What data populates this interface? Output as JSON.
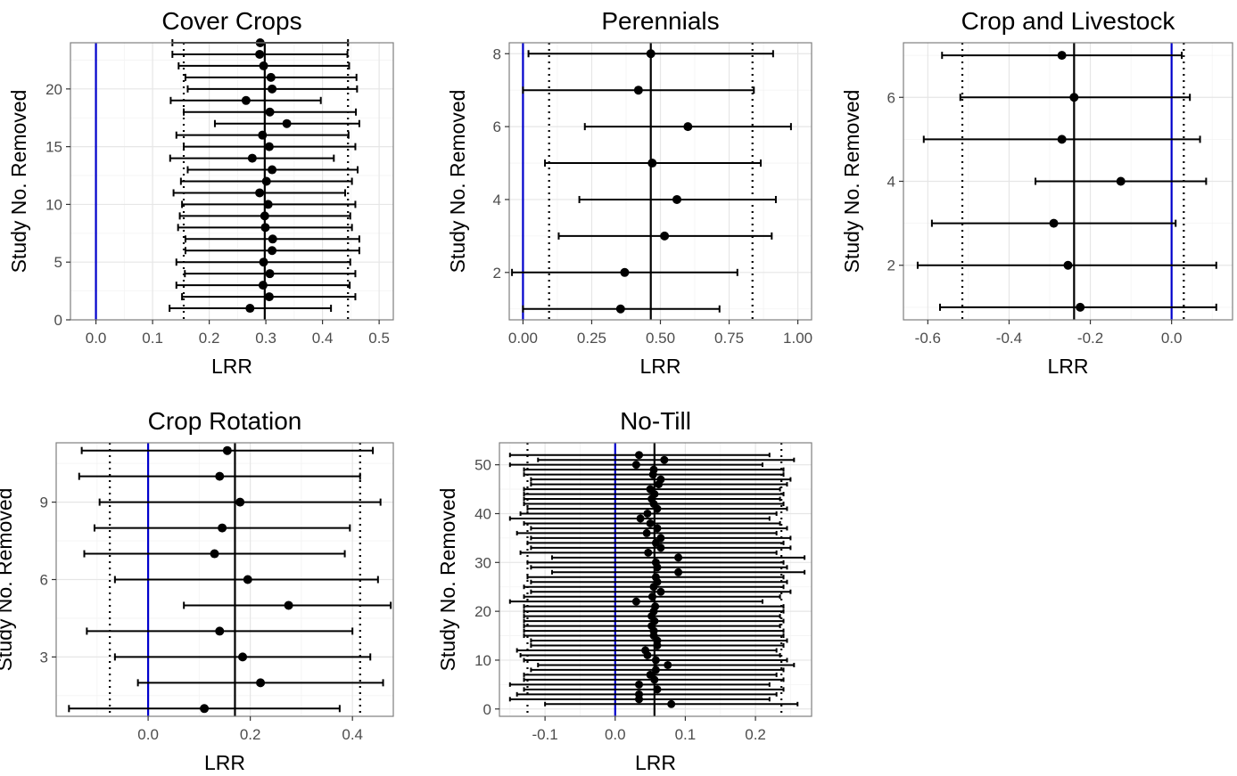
{
  "chart_data": [
    {
      "type": "forest",
      "title": "Cover Crops",
      "xlabel": "LRR",
      "ylabel": "Study No. Removed",
      "xlim": [
        -0.045,
        0.525
      ],
      "ylim": [
        0,
        24
      ],
      "xticks": [
        0,
        0.1,
        0.2,
        0.3,
        0.4,
        0.5
      ],
      "xtick_labels": [
        "0.0",
        "0.1",
        "0.2",
        "0.3",
        "0.4",
        "0.5"
      ],
      "yticks": [
        0,
        5,
        10,
        15,
        20
      ],
      "ytick_labels": [
        "0",
        "5",
        "10",
        "15",
        "20"
      ],
      "zero_line": 0,
      "overall_estimate": 0.298,
      "ci_lines": [
        0.155,
        0.445
      ],
      "points": [
        {
          "y": 1,
          "est": 0.272,
          "lo": 0.13,
          "hi": 0.415
        },
        {
          "y": 2,
          "est": 0.306,
          "lo": 0.152,
          "hi": 0.458
        },
        {
          "y": 3,
          "est": 0.295,
          "lo": 0.142,
          "hi": 0.448
        },
        {
          "y": 4,
          "est": 0.307,
          "lo": 0.157,
          "hi": 0.458
        },
        {
          "y": 5,
          "est": 0.296,
          "lo": 0.142,
          "hi": 0.449
        },
        {
          "y": 6,
          "est": 0.311,
          "lo": 0.158,
          "hi": 0.465
        },
        {
          "y": 7,
          "est": 0.312,
          "lo": 0.158,
          "hi": 0.465
        },
        {
          "y": 8,
          "est": 0.299,
          "lo": 0.145,
          "hi": 0.452
        },
        {
          "y": 9,
          "est": 0.298,
          "lo": 0.148,
          "hi": 0.449
        },
        {
          "y": 10,
          "est": 0.304,
          "lo": 0.152,
          "hi": 0.458
        },
        {
          "y": 11,
          "est": 0.289,
          "lo": 0.137,
          "hi": 0.44
        },
        {
          "y": 12,
          "est": 0.301,
          "lo": 0.15,
          "hi": 0.452
        },
        {
          "y": 13,
          "est": 0.311,
          "lo": 0.162,
          "hi": 0.462
        },
        {
          "y": 14,
          "est": 0.276,
          "lo": 0.131,
          "hi": 0.42
        },
        {
          "y": 15,
          "est": 0.306,
          "lo": 0.155,
          "hi": 0.458
        },
        {
          "y": 16,
          "est": 0.294,
          "lo": 0.142,
          "hi": 0.446
        },
        {
          "y": 17,
          "est": 0.337,
          "lo": 0.21,
          "hi": 0.465
        },
        {
          "y": 18,
          "est": 0.307,
          "lo": 0.155,
          "hi": 0.459
        },
        {
          "y": 19,
          "est": 0.265,
          "lo": 0.132,
          "hi": 0.397
        },
        {
          "y": 20,
          "est": 0.311,
          "lo": 0.162,
          "hi": 0.461
        },
        {
          "y": 21,
          "est": 0.309,
          "lo": 0.158,
          "hi": 0.46
        },
        {
          "y": 22,
          "est": 0.296,
          "lo": 0.146,
          "hi": 0.447
        },
        {
          "y": 23,
          "est": 0.289,
          "lo": 0.135,
          "hi": 0.444
        },
        {
          "y": 24,
          "est": 0.29,
          "lo": 0.135,
          "hi": 0.445
        }
      ]
    },
    {
      "type": "forest",
      "title": "Perennials",
      "xlabel": "LRR",
      "ylabel": "Study No. Removed",
      "xlim": [
        -0.05,
        1.05
      ],
      "ylim": [
        0.7,
        8.3
      ],
      "xticks": [
        0,
        0.25,
        0.5,
        0.75,
        1.0
      ],
      "xtick_labels": [
        "0.00",
        "0.25",
        "0.50",
        "0.75",
        "1.00"
      ],
      "yticks": [
        2,
        4,
        6,
        8
      ],
      "ytick_labels": [
        "2",
        "4",
        "6",
        "8"
      ],
      "zero_line": 0,
      "overall_estimate": 0.465,
      "ci_lines": [
        0.095,
        0.835
      ],
      "points": [
        {
          "y": 1,
          "est": 0.355,
          "lo": 0.0,
          "hi": 0.715
        },
        {
          "y": 2,
          "est": 0.37,
          "lo": -0.04,
          "hi": 0.78
        },
        {
          "y": 3,
          "est": 0.515,
          "lo": 0.13,
          "hi": 0.905
        },
        {
          "y": 4,
          "est": 0.56,
          "lo": 0.205,
          "hi": 0.92
        },
        {
          "y": 5,
          "est": 0.47,
          "lo": 0.08,
          "hi": 0.865
        },
        {
          "y": 6,
          "est": 0.6,
          "lo": 0.225,
          "hi": 0.975
        },
        {
          "y": 7,
          "est": 0.42,
          "lo": 0.0,
          "hi": 0.84
        },
        {
          "y": 8,
          "est": 0.465,
          "lo": 0.02,
          "hi": 0.91
        }
      ]
    },
    {
      "type": "forest",
      "title": "Crop and Livestock",
      "xlabel": "LRR",
      "ylabel": "Study No. Removed",
      "xlim": [
        -0.66,
        0.15
      ],
      "ylim": [
        0.7,
        7.3
      ],
      "xticks": [
        -0.6,
        -0.4,
        -0.2,
        0.0
      ],
      "xtick_labels": [
        "-0.6",
        "-0.4",
        "-0.2",
        "0.0"
      ],
      "yticks": [
        2,
        4,
        6
      ],
      "ytick_labels": [
        "2",
        "4",
        "6"
      ],
      "zero_line": 0,
      "overall_estimate": -0.24,
      "ci_lines": [
        -0.515,
        0.03
      ],
      "points": [
        {
          "y": 1,
          "est": -0.225,
          "lo": -0.57,
          "hi": 0.11
        },
        {
          "y": 2,
          "est": -0.255,
          "lo": -0.625,
          "hi": 0.11
        },
        {
          "y": 3,
          "est": -0.29,
          "lo": -0.59,
          "hi": 0.01
        },
        {
          "y": 4,
          "est": -0.125,
          "lo": -0.335,
          "hi": 0.085
        },
        {
          "y": 5,
          "est": -0.27,
          "lo": -0.61,
          "hi": 0.07
        },
        {
          "y": 6,
          "est": -0.24,
          "lo": -0.52,
          "hi": 0.045
        },
        {
          "y": 7,
          "est": -0.27,
          "lo": -0.565,
          "hi": 0.025
        }
      ]
    },
    {
      "type": "forest",
      "title": "Crop Rotation",
      "xlabel": "LRR",
      "ylabel": "Study No. Removed",
      "xlim": [
        -0.18,
        0.48
      ],
      "ylim": [
        0.7,
        11.3
      ],
      "xticks": [
        0.0,
        0.2,
        0.4
      ],
      "xtick_labels": [
        "0.0",
        "0.2",
        "0.4"
      ],
      "yticks": [
        3,
        6,
        9
      ],
      "ytick_labels": [
        "3",
        "6",
        "9"
      ],
      "zero_line": 0,
      "overall_estimate": 0.17,
      "ci_lines": [
        -0.075,
        0.415
      ],
      "points": [
        {
          "y": 1,
          "est": 0.11,
          "lo": -0.155,
          "hi": 0.375
        },
        {
          "y": 2,
          "est": 0.22,
          "lo": -0.02,
          "hi": 0.46
        },
        {
          "y": 3,
          "est": 0.185,
          "lo": -0.065,
          "hi": 0.435
        },
        {
          "y": 4,
          "est": 0.14,
          "lo": -0.12,
          "hi": 0.4
        },
        {
          "y": 5,
          "est": 0.275,
          "lo": 0.07,
          "hi": 0.475
        },
        {
          "y": 6,
          "est": 0.195,
          "lo": -0.065,
          "hi": 0.45
        },
        {
          "y": 7,
          "est": 0.13,
          "lo": -0.125,
          "hi": 0.385
        },
        {
          "y": 8,
          "est": 0.145,
          "lo": -0.105,
          "hi": 0.395
        },
        {
          "y": 9,
          "est": 0.18,
          "lo": -0.095,
          "hi": 0.455
        },
        {
          "y": 10,
          "est": 0.14,
          "lo": -0.135,
          "hi": 0.415
        },
        {
          "y": 11,
          "est": 0.155,
          "lo": -0.13,
          "hi": 0.44
        }
      ]
    },
    {
      "type": "forest",
      "title": "No-Till",
      "xlabel": "LRR",
      "ylabel": "Study No. Removed",
      "xlim": [
        -0.165,
        0.28
      ],
      "ylim": [
        -1.5,
        54.5
      ],
      "xticks": [
        -0.1,
        0.0,
        0.1,
        0.2
      ],
      "xtick_labels": [
        "-0.1",
        "0.0",
        "0.1",
        "0.2"
      ],
      "yticks": [
        0,
        10,
        20,
        30,
        40,
        50
      ],
      "ytick_labels": [
        "0",
        "10",
        "20",
        "30",
        "40",
        "50"
      ],
      "zero_line": 0,
      "overall_estimate": 0.056,
      "ci_lines": [
        -0.125,
        0.237
      ],
      "points": [
        {
          "y": 1,
          "est": 0.08,
          "lo": -0.1,
          "hi": 0.26
        },
        {
          "y": 2,
          "est": 0.034,
          "lo": -0.15,
          "hi": 0.22
        },
        {
          "y": 3,
          "est": 0.034,
          "lo": -0.14,
          "hi": 0.23
        },
        {
          "y": 4,
          "est": 0.06,
          "lo": -0.13,
          "hi": 0.24
        },
        {
          "y": 5,
          "est": 0.034,
          "lo": -0.15,
          "hi": 0.22
        },
        {
          "y": 6,
          "est": 0.056,
          "lo": -0.13,
          "hi": 0.24
        },
        {
          "y": 7,
          "est": 0.05,
          "lo": -0.13,
          "hi": 0.23
        },
        {
          "y": 8,
          "est": 0.058,
          "lo": -0.12,
          "hi": 0.24
        },
        {
          "y": 9,
          "est": 0.075,
          "lo": -0.11,
          "hi": 0.255
        },
        {
          "y": 10,
          "est": 0.058,
          "lo": -0.13,
          "hi": 0.245
        },
        {
          "y": 11,
          "est": 0.046,
          "lo": -0.135,
          "hi": 0.235
        },
        {
          "y": 12,
          "est": 0.043,
          "lo": -0.14,
          "hi": 0.23
        },
        {
          "y": 13,
          "est": 0.06,
          "lo": -0.12,
          "hi": 0.24
        },
        {
          "y": 14,
          "est": 0.06,
          "lo": -0.12,
          "hi": 0.245
        },
        {
          "y": 15,
          "est": 0.055,
          "lo": -0.13,
          "hi": 0.24
        },
        {
          "y": 16,
          "est": 0.055,
          "lo": -0.13,
          "hi": 0.24
        },
        {
          "y": 17,
          "est": 0.052,
          "lo": -0.13,
          "hi": 0.235
        },
        {
          "y": 18,
          "est": 0.056,
          "lo": -0.13,
          "hi": 0.24
        },
        {
          "y": 19,
          "est": 0.052,
          "lo": -0.13,
          "hi": 0.235
        },
        {
          "y": 20,
          "est": 0.055,
          "lo": -0.13,
          "hi": 0.24
        },
        {
          "y": 21,
          "est": 0.057,
          "lo": -0.13,
          "hi": 0.24
        },
        {
          "y": 22,
          "est": 0.03,
          "lo": -0.15,
          "hi": 0.21
        },
        {
          "y": 23,
          "est": 0.053,
          "lo": -0.13,
          "hi": 0.235
        },
        {
          "y": 24,
          "est": 0.065,
          "lo": -0.12,
          "hi": 0.25
        },
        {
          "y": 25,
          "est": 0.055,
          "lo": -0.13,
          "hi": 0.24
        },
        {
          "y": 26,
          "est": 0.06,
          "lo": -0.12,
          "hi": 0.245
        },
        {
          "y": 27,
          "est": 0.058,
          "lo": -0.125,
          "hi": 0.24
        },
        {
          "y": 28,
          "est": 0.09,
          "lo": -0.09,
          "hi": 0.27
        },
        {
          "y": 29,
          "est": 0.06,
          "lo": -0.12,
          "hi": 0.245
        },
        {
          "y": 30,
          "est": 0.058,
          "lo": -0.125,
          "hi": 0.24
        },
        {
          "y": 31,
          "est": 0.09,
          "lo": -0.09,
          "hi": 0.27
        },
        {
          "y": 32,
          "est": 0.047,
          "lo": -0.135,
          "hi": 0.23
        },
        {
          "y": 33,
          "est": 0.065,
          "lo": -0.12,
          "hi": 0.25
        },
        {
          "y": 34,
          "est": 0.058,
          "lo": -0.125,
          "hi": 0.24
        },
        {
          "y": 35,
          "est": 0.065,
          "lo": -0.12,
          "hi": 0.25
        },
        {
          "y": 36,
          "est": 0.045,
          "lo": -0.14,
          "hi": 0.23
        },
        {
          "y": 37,
          "est": 0.06,
          "lo": -0.12,
          "hi": 0.245
        },
        {
          "y": 38,
          "est": 0.05,
          "lo": -0.13,
          "hi": 0.235
        },
        {
          "y": 39,
          "est": 0.036,
          "lo": -0.15,
          "hi": 0.22
        },
        {
          "y": 40,
          "est": 0.046,
          "lo": -0.135,
          "hi": 0.23
        },
        {
          "y": 41,
          "est": 0.06,
          "lo": -0.125,
          "hi": 0.245
        },
        {
          "y": 42,
          "est": 0.055,
          "lo": -0.13,
          "hi": 0.24
        },
        {
          "y": 43,
          "est": 0.052,
          "lo": -0.13,
          "hi": 0.235
        },
        {
          "y": 44,
          "est": 0.056,
          "lo": -0.13,
          "hi": 0.24
        },
        {
          "y": 45,
          "est": 0.05,
          "lo": -0.13,
          "hi": 0.235
        },
        {
          "y": 46,
          "est": 0.062,
          "lo": -0.12,
          "hi": 0.245
        },
        {
          "y": 47,
          "est": 0.065,
          "lo": -0.12,
          "hi": 0.25
        },
        {
          "y": 48,
          "est": 0.054,
          "lo": -0.13,
          "hi": 0.24
        },
        {
          "y": 49,
          "est": 0.055,
          "lo": -0.13,
          "hi": 0.24
        },
        {
          "y": 50,
          "est": 0.03,
          "lo": -0.15,
          "hi": 0.21
        },
        {
          "y": 51,
          "est": 0.07,
          "lo": -0.11,
          "hi": 0.255
        },
        {
          "y": 52,
          "est": 0.034,
          "lo": -0.15,
          "hi": 0.22
        }
      ]
    }
  ],
  "colors": {
    "zero_line": "#0000cc",
    "panel_border": "#7f7f7f",
    "grid_major": "#e6e6e6",
    "grid_minor": "#f3f3f3",
    "ink": "#000000",
    "tick_label": "#4d4d4d"
  }
}
